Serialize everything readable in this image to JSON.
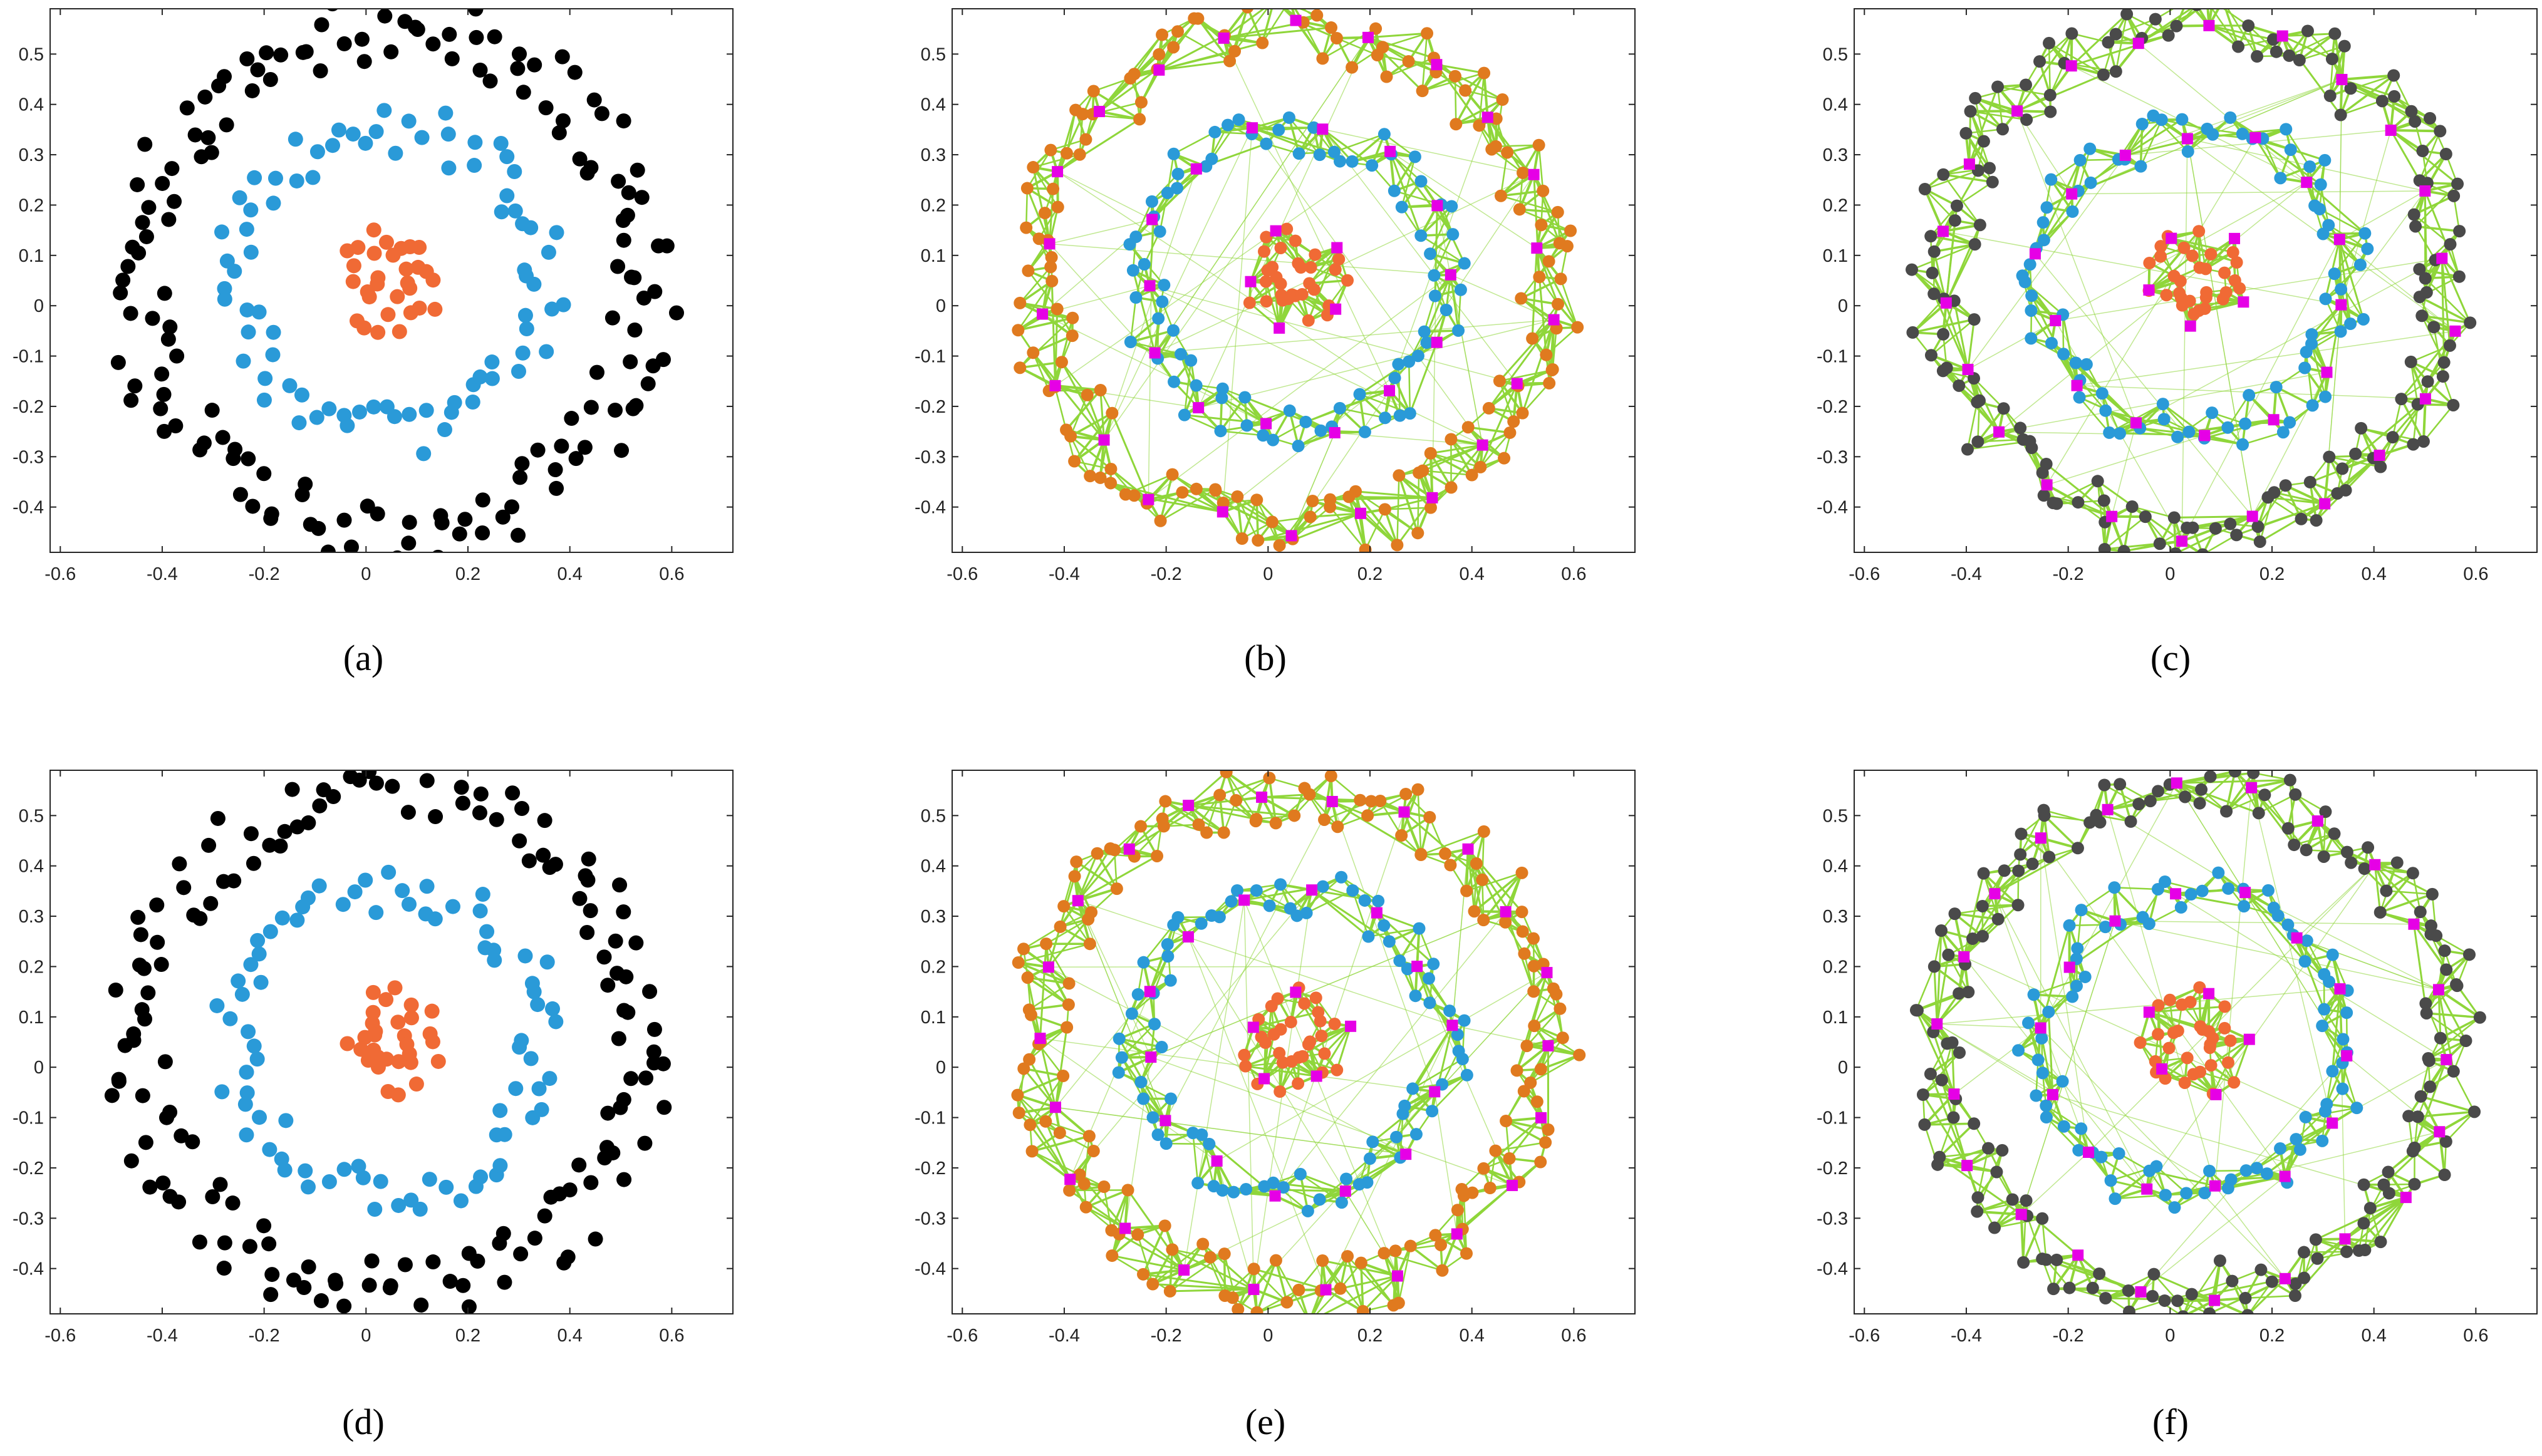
{
  "panels": [
    {
      "caption": "(a)",
      "style": "scatter",
      "seed": 11
    },
    {
      "caption": "(b)",
      "style": "graph-orange",
      "seed": 23
    },
    {
      "caption": "(c)",
      "style": "graph-dark",
      "seed": 37
    },
    {
      "caption": "(d)",
      "style": "scatter",
      "seed": 53
    },
    {
      "caption": "(e)",
      "style": "graph-orange",
      "seed": 71
    },
    {
      "caption": "(f)",
      "style": "graph-dark",
      "seed": 89
    }
  ],
  "chart_data": {
    "type": "scatter",
    "xlim": [
      -0.62,
      0.72
    ],
    "ylim": [
      -0.49,
      0.59
    ],
    "x_ticks": [
      "-0.6",
      "-0.4",
      "-0.2",
      "0",
      "0.2",
      "0.4",
      "0.6"
    ],
    "x_tick_values": [
      -0.6,
      -0.4,
      -0.2,
      0,
      0.2,
      0.4,
      0.6
    ],
    "y_ticks": [
      "0.5",
      "0.4",
      "0.3",
      "0.2",
      "0.1",
      "0",
      "-0.1",
      "-0.2",
      "-0.3",
      "-0.4"
    ],
    "y_tick_values": [
      0.5,
      0.4,
      0.3,
      0.2,
      0.1,
      0,
      -0.1,
      -0.2,
      -0.3,
      -0.4
    ],
    "grid": false,
    "center": [
      0.05,
      0.05
    ],
    "clusters": [
      {
        "label": "outer ring",
        "radius": 0.5,
        "count": 150,
        "color": "#000000",
        "graph_color": "#e07a1f"
      },
      {
        "label": "middle ring",
        "radius": 0.3,
        "count": 80,
        "color": "#2a9ad8",
        "graph_color": "#2a9ad8"
      },
      {
        "label": "inner cluster",
        "radius": 0.1,
        "count": 30,
        "color": "#f06a35",
        "graph_color": "#f06a35"
      }
    ],
    "anchors": {
      "outer_count": 22,
      "middle_count": 14,
      "inner_count": 5,
      "color": "#e600e6",
      "edge_color": "#8fd63a"
    }
  }
}
